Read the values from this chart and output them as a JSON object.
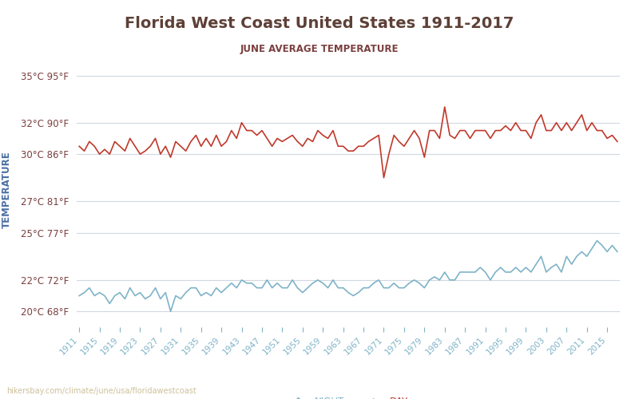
{
  "title": "Florida West Coast United States 1911-2017",
  "subtitle": "JUNE AVERAGE TEMPERATURE",
  "ylabel": "TEMPERATURE",
  "years": [
    1911,
    1912,
    1913,
    1914,
    1915,
    1916,
    1917,
    1918,
    1919,
    1920,
    1921,
    1922,
    1923,
    1924,
    1925,
    1926,
    1927,
    1928,
    1929,
    1930,
    1931,
    1932,
    1933,
    1934,
    1935,
    1936,
    1937,
    1938,
    1939,
    1940,
    1941,
    1942,
    1943,
    1944,
    1945,
    1946,
    1947,
    1948,
    1949,
    1950,
    1951,
    1952,
    1953,
    1954,
    1955,
    1956,
    1957,
    1958,
    1959,
    1960,
    1961,
    1962,
    1963,
    1964,
    1965,
    1966,
    1967,
    1968,
    1969,
    1970,
    1971,
    1972,
    1973,
    1974,
    1975,
    1976,
    1977,
    1978,
    1979,
    1980,
    1981,
    1982,
    1983,
    1984,
    1985,
    1986,
    1987,
    1988,
    1989,
    1990,
    1991,
    1992,
    1993,
    1994,
    1995,
    1996,
    1997,
    1998,
    1999,
    2000,
    2001,
    2002,
    2003,
    2004,
    2005,
    2006,
    2007,
    2008,
    2009,
    2010,
    2011,
    2012,
    2013,
    2014,
    2015,
    2016,
    2017
  ],
  "day_temps_c": [
    30.5,
    30.2,
    30.8,
    30.5,
    30.0,
    30.3,
    30.0,
    30.8,
    30.5,
    30.2,
    31.0,
    30.5,
    30.0,
    30.2,
    30.5,
    31.0,
    30.0,
    30.5,
    29.8,
    30.8,
    30.5,
    30.2,
    30.8,
    31.2,
    30.5,
    31.0,
    30.5,
    31.2,
    30.5,
    30.8,
    31.5,
    31.0,
    32.0,
    31.5,
    31.5,
    31.2,
    31.5,
    31.0,
    30.5,
    31.0,
    30.8,
    31.0,
    31.2,
    30.8,
    30.5,
    31.0,
    30.8,
    31.5,
    31.2,
    31.0,
    31.5,
    30.5,
    30.5,
    30.2,
    30.2,
    30.5,
    30.5,
    30.8,
    31.0,
    31.2,
    28.5,
    30.0,
    31.2,
    30.8,
    30.5,
    31.0,
    31.5,
    31.0,
    29.8,
    31.5,
    31.5,
    31.0,
    33.0,
    31.2,
    31.0,
    31.5,
    31.5,
    31.0,
    31.5,
    31.5,
    31.5,
    31.0,
    31.5,
    31.5,
    31.8,
    31.5,
    32.0,
    31.5,
    31.5,
    31.0,
    32.0,
    32.5,
    31.5,
    31.5,
    32.0,
    31.5,
    32.0,
    31.5,
    32.0,
    32.5,
    31.5,
    32.0,
    31.5,
    31.5,
    31.0,
    31.2,
    30.8
  ],
  "night_temps_c": [
    21.0,
    21.2,
    21.5,
    21.0,
    21.2,
    21.0,
    20.5,
    21.0,
    21.2,
    20.8,
    21.5,
    21.0,
    21.2,
    20.8,
    21.0,
    21.5,
    20.8,
    21.2,
    20.0,
    21.0,
    20.8,
    21.2,
    21.5,
    21.5,
    21.0,
    21.2,
    21.0,
    21.5,
    21.2,
    21.5,
    21.8,
    21.5,
    22.0,
    21.8,
    21.8,
    21.5,
    21.5,
    22.0,
    21.5,
    21.8,
    21.5,
    21.5,
    22.0,
    21.5,
    21.2,
    21.5,
    21.8,
    22.0,
    21.8,
    21.5,
    22.0,
    21.5,
    21.5,
    21.2,
    21.0,
    21.2,
    21.5,
    21.5,
    21.8,
    22.0,
    21.5,
    21.5,
    21.8,
    21.5,
    21.5,
    21.8,
    22.0,
    21.8,
    21.5,
    22.0,
    22.2,
    22.0,
    22.5,
    22.0,
    22.0,
    22.5,
    22.5,
    22.5,
    22.5,
    22.8,
    22.5,
    22.0,
    22.5,
    22.8,
    22.5,
    22.5,
    22.8,
    22.5,
    22.8,
    22.5,
    23.0,
    23.5,
    22.5,
    22.8,
    23.0,
    22.5,
    23.5,
    23.0,
    23.5,
    23.8,
    23.5,
    24.0,
    24.5,
    24.2,
    23.8,
    24.2,
    23.8
  ],
  "yticks_c": [
    20,
    22,
    25,
    27,
    30,
    32,
    35
  ],
  "ytick_labels": [
    "20°C 68°F",
    "22°C 72°F",
    "25°C 77°F",
    "27°C 81°F",
    "30°C 86°F",
    "32°C 90°F",
    "35°C 95°F"
  ],
  "xtick_years": [
    1911,
    1915,
    1919,
    1923,
    1927,
    1931,
    1935,
    1939,
    1943,
    1947,
    1951,
    1955,
    1959,
    1963,
    1967,
    1971,
    1975,
    1979,
    1983,
    1987,
    1991,
    1995,
    1999,
    2003,
    2007,
    2011,
    2015
  ],
  "day_color": "#c0392b",
  "night_color": "#7fb3c8",
  "grid_color": "#d0d8e0",
  "title_color": "#5d4037",
  "subtitle_color": "#7b3f3f",
  "ylabel_color": "#4a6fa5",
  "tick_color": "#7b3f3f",
  "xtick_color": "#7fb3c8",
  "watermark": "hikersbay.com/climate/june/usa/floridawestcoast",
  "background_color": "#ffffff",
  "ylim": [
    19.0,
    36.5
  ]
}
